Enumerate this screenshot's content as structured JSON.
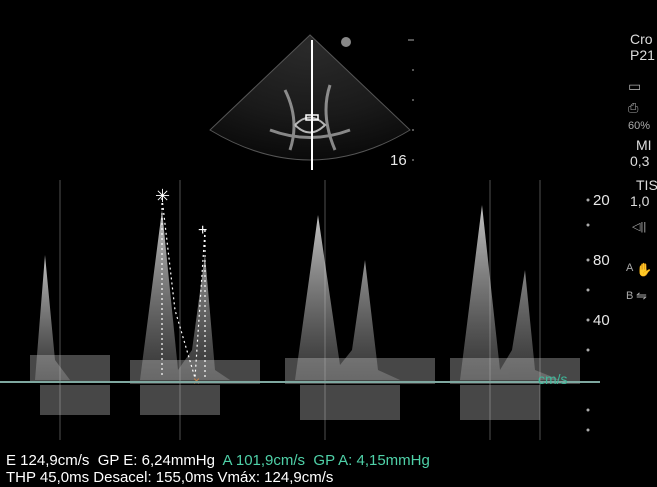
{
  "sector": {
    "depth_label": "16"
  },
  "scale": {
    "ticks": [
      "20",
      "80",
      "40"
    ],
    "unit": "cm/s"
  },
  "side_panel": {
    "line1": "Cro",
    "line2": "P21",
    "percent": "60%",
    "mi_label": "MI",
    "mi_value": "0,3",
    "tis_label": "TIS",
    "tis_value": "1,0",
    "marker_a": "A",
    "marker_b": "B"
  },
  "measurements": {
    "e_vel": "E 124,9cm/s",
    "gp_e": "GP E: 6,24mmHg",
    "a_vel": "A 101,9cm/s",
    "gp_a": "GP A: 4,15mmHg",
    "thp": "THP 45,0ms",
    "decel": "Desacel: 155,0ms",
    "vmax": "Vmáx: 124,9cm/s"
  },
  "colors": {
    "text_green": "#4fd1a8",
    "baseline": "#7fa8a0"
  }
}
